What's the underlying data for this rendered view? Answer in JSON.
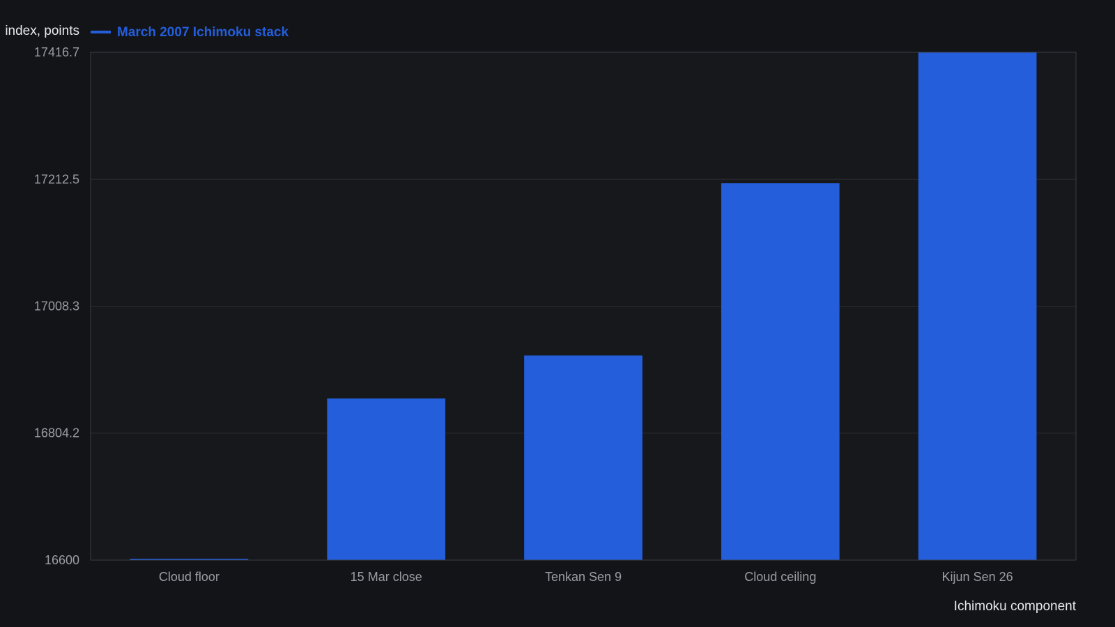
{
  "colors": {
    "background": "#131417",
    "plot_background": "#16181c",
    "bar": "#245edb",
    "grid": "#2a2d33",
    "frame": "#3a3d44",
    "tick_text": "#9a9da4",
    "axis_title_text": "#e8e9eb",
    "legend_text": "#245edb"
  },
  "chart_data": {
    "type": "bar",
    "title": "",
    "xlabel": "Ichimoku component",
    "ylabel": "index, points",
    "categories": [
      "Cloud floor",
      "15 Mar close",
      "Tenkan Sen 9",
      "Cloud ceiling",
      "Kijun Sen 26"
    ],
    "series": [
      {
        "name": "March 2007 Ichimoku stack",
        "values": [
          16600,
          16860,
          16929,
          17206,
          17416.7
        ]
      }
    ],
    "ylim": [
      16600,
      17416.7
    ],
    "yticks": [
      "16600",
      "16804.2",
      "17008.3",
      "17212.5",
      "17416.7"
    ],
    "grid": true,
    "legend_position": "top-left"
  }
}
